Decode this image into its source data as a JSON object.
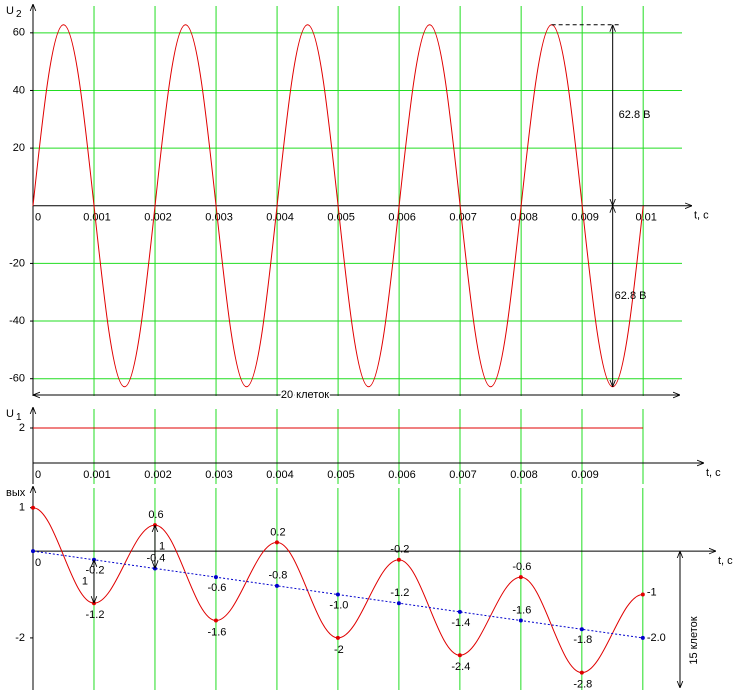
{
  "chart_data": [
    {
      "type": "line",
      "y_label": "U",
      "y_label_sub": "2",
      "x_label": "t, c",
      "xlim": [
        0,
        0.0108
      ],
      "ylim": [
        -66,
        70
      ],
      "xticks": [
        0,
        0.001,
        0.002,
        0.003,
        0.004,
        0.005,
        0.006,
        0.007,
        0.008,
        0.009,
        0.01
      ],
      "yticks": [
        60,
        40,
        20,
        -20,
        -40,
        -60
      ],
      "grid": "both",
      "x": [
        0,
        0.0005,
        0.001,
        0.0015,
        0.002,
        0.0025,
        0.003,
        0.0035,
        0.004,
        0.0045,
        0.005,
        0.0055,
        0.006,
        0.0065,
        0.007,
        0.0075,
        0.008,
        0.0085,
        0.009,
        0.0095,
        0.01
      ],
      "series": [
        {
          "color": "#e00000",
          "values": [
            0,
            62.8,
            0,
            -62.8,
            0,
            62.8,
            0,
            -62.8,
            0,
            62.8,
            0,
            -62.8,
            0,
            62.8,
            0,
            -62.8,
            0,
            62.8,
            0,
            -62.8,
            0
          ]
        }
      ],
      "annotations": [
        "62.8 В",
        "62.8 В",
        "20 клеток"
      ]
    },
    {
      "type": "line",
      "y_label": "U",
      "y_label_sub": "1",
      "x_label": "t, c",
      "xlim": [
        0,
        0.011
      ],
      "ylim": [
        -1.2,
        3.2
      ],
      "xticks": [
        0,
        0.001,
        0.002,
        0.003,
        0.004,
        0.005,
        0.006,
        0.007,
        0.008,
        0.009
      ],
      "yticks": [
        2
      ],
      "grid": "x",
      "x": [
        0,
        0.01
      ],
      "series": [
        {
          "color": "#e00000",
          "values": [
            2,
            2
          ]
        }
      ]
    },
    {
      "type": "line",
      "y_label": "вых",
      "x_label": "t, c",
      "xlim": [
        0,
        0.0112
      ],
      "ylim": [
        -3.2,
        1.5
      ],
      "xticks": [
        0
      ],
      "yticks": [
        1,
        -2
      ],
      "grid": "x",
      "x": [
        0,
        0.001,
        0.002,
        0.003,
        0.004,
        0.005,
        0.006,
        0.007,
        0.008,
        0.009,
        0.01
      ],
      "series": [
        {
          "color": "#e00000",
          "markers": true,
          "values": [
            1,
            -1.2,
            0.6,
            -1.6,
            0.2,
            -2,
            -0.2,
            -2.4,
            -0.6,
            -2.8,
            -1
          ],
          "value_labels": [
            null,
            "-1.2",
            "0.6",
            "-1.6",
            "0.2",
            "-2",
            "-0.2",
            "-2.4",
            "-0.6",
            "-2.8",
            "-1"
          ]
        },
        {
          "color": "#0000cc",
          "markers": true,
          "style": "dotted",
          "values": [
            0,
            -0.2,
            -0.4,
            -0.6,
            -0.8,
            -1,
            -1.2,
            -1.4,
            -1.6,
            -1.8,
            -2
          ],
          "value_labels": [
            null,
            "-0.2",
            "-0.4",
            "-0.6",
            "-0.8",
            "-1.0",
            "-1.2",
            "-1.4",
            "-1.6",
            "-1.8",
            "-2.0"
          ]
        }
      ],
      "annotations": [
        "15 клеток",
        "1",
        "1"
      ]
    }
  ]
}
